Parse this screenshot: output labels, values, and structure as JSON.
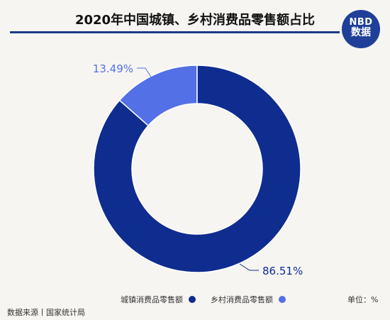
{
  "header": {
    "title": "2020年中国城镇、乡村消费品零售额占比",
    "logo_line1": "NBD",
    "logo_line2": "数据"
  },
  "chart_data": {
    "type": "pie",
    "donut": true,
    "title": "2020年中国城镇、乡村消费品零售额占比",
    "slices": [
      {
        "name": "城镇消费品零售额",
        "value": 86.51,
        "label": "86.51%",
        "color": "#0f2d8f"
      },
      {
        "name": "乡村消费品零售额",
        "value": 13.49,
        "label": "13.49%",
        "color": "#5470e6"
      }
    ],
    "legend_position": "bottom"
  },
  "footer": {
    "unit": "单位：%",
    "source": "数据来源丨国家统计局"
  }
}
